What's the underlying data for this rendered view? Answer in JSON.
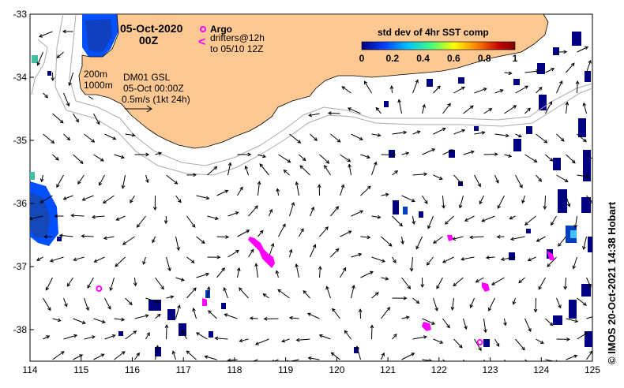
{
  "header": {
    "date": "05-Oct-2020",
    "time": "00Z"
  },
  "legend": {
    "argo_label": "Argo",
    "drifter_symbol": "<",
    "drifters_line1": "drifters@12h",
    "drifters_line2": "to 05/10 12Z",
    "argo_color": "#ff00ff"
  },
  "info": {
    "isobath1": "200m",
    "isobath2": "1000m",
    "product": "DM01 GSL",
    "timestamp": "05-Oct 00:00Z",
    "scale": "0.5m/s (1kt 24h)"
  },
  "colorbar": {
    "title": "std dev of 4hr SST comp",
    "ticks": [
      "0",
      "0.2",
      "0.4",
      "0.6",
      "0.8",
      "1"
    ],
    "range": [
      0,
      1
    ],
    "stops": [
      "#000080",
      "#0040ff",
      "#00c0ff",
      "#40ff80",
      "#ffff00",
      "#ff8000",
      "#c00000",
      "#800000"
    ]
  },
  "axes": {
    "x_ticks": [
      "114",
      "115",
      "116",
      "117",
      "118",
      "119",
      "120",
      "121",
      "122",
      "123",
      "124",
      "125"
    ],
    "y_ticks": [
      "-33",
      "-34",
      "-35",
      "-36",
      "-37",
      "-38"
    ],
    "lon_range": [
      114,
      125
    ],
    "lat_range": [
      -33,
      -38.5
    ]
  },
  "credit": "© IMOS 20-Oct-2021 14:38 Hobart",
  "colors": {
    "land": "#fdc891",
    "isobath": "#aaaaaa",
    "sst_dark": "#000080",
    "sst_mid": "#0050ff",
    "drifter": "#ff00ff"
  },
  "argo_floats": [
    {
      "lon": 115.35,
      "lat": -37.35
    },
    {
      "lon": 122.8,
      "lat": -38.2
    }
  ]
}
